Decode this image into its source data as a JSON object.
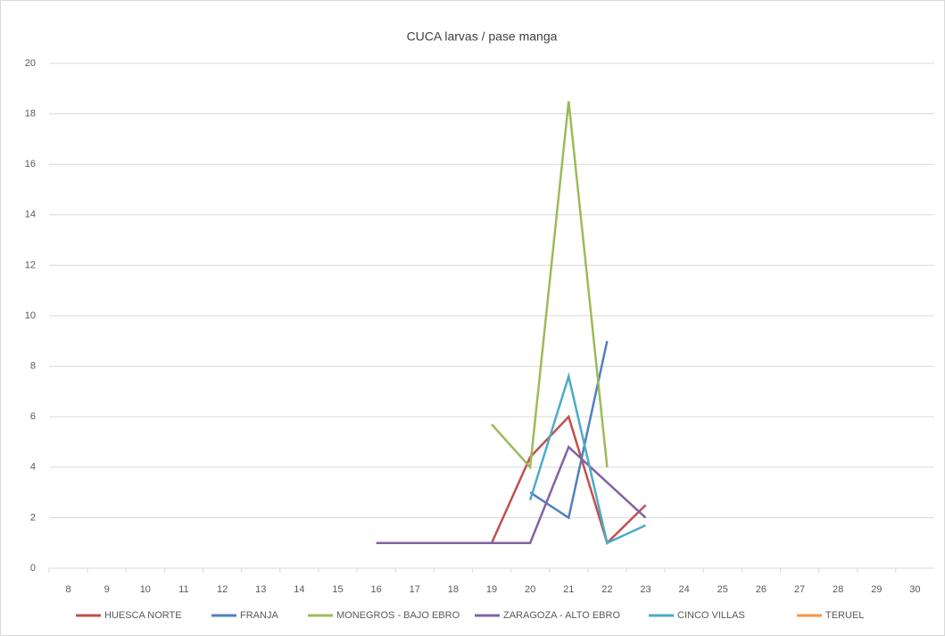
{
  "chart_data": {
    "type": "line",
    "title": "CUCA  larvas / pase manga",
    "categories": [
      "8",
      "9",
      "10",
      "11",
      "12",
      "13",
      "14",
      "15",
      "16",
      "17",
      "18",
      "19",
      "20",
      "21",
      "22",
      "23",
      "24",
      "25",
      "26",
      "27",
      "28",
      "29",
      "30"
    ],
    "series": [
      {
        "name": "HUESCA NORTE",
        "color": "#c0504d",
        "values": [
          null,
          null,
          null,
          null,
          null,
          null,
          null,
          null,
          null,
          null,
          null,
          1,
          4.4,
          6,
          1,
          2.5,
          null,
          null,
          null,
          null,
          null,
          null,
          null
        ]
      },
      {
        "name": "FRANJA",
        "color": "#4f81bd",
        "values": [
          null,
          null,
          null,
          null,
          null,
          null,
          null,
          null,
          null,
          null,
          null,
          null,
          3,
          2,
          9,
          null,
          null,
          null,
          null,
          null,
          null,
          null,
          null
        ]
      },
      {
        "name": "MONEGROS - BAJO EBRO",
        "color": "#9bbb59",
        "values": [
          null,
          null,
          null,
          null,
          null,
          null,
          null,
          null,
          null,
          null,
          null,
          5.7,
          4,
          18.5,
          4,
          null,
          null,
          null,
          null,
          null,
          null,
          null,
          null
        ]
      },
      {
        "name": "ZARAGOZA - ALTO EBRO",
        "color": "#8064a2",
        "values": [
          null,
          null,
          null,
          null,
          null,
          null,
          null,
          null,
          1,
          1,
          1,
          1,
          1,
          4.8,
          3.4,
          2,
          null,
          null,
          null,
          null,
          null,
          null,
          null
        ]
      },
      {
        "name": "CINCO VILLAS",
        "color": "#4bacc6",
        "values": [
          null,
          null,
          null,
          null,
          null,
          null,
          null,
          null,
          null,
          null,
          null,
          null,
          2.7,
          7.6,
          1,
          1.7,
          null,
          null,
          null,
          null,
          null,
          null,
          null
        ]
      },
      {
        "name": "TERUEL",
        "color": "#f79646",
        "values": [
          null,
          null,
          null,
          null,
          null,
          null,
          null,
          null,
          null,
          null,
          null,
          null,
          null,
          null,
          null,
          null,
          null,
          null,
          null,
          null,
          null,
          null,
          null
        ]
      }
    ],
    "ylim": [
      0,
      20
    ],
    "yticks": [
      0,
      2,
      4,
      6,
      8,
      10,
      12,
      14,
      16,
      18,
      20
    ],
    "grid": true,
    "legend": "bottom"
  }
}
